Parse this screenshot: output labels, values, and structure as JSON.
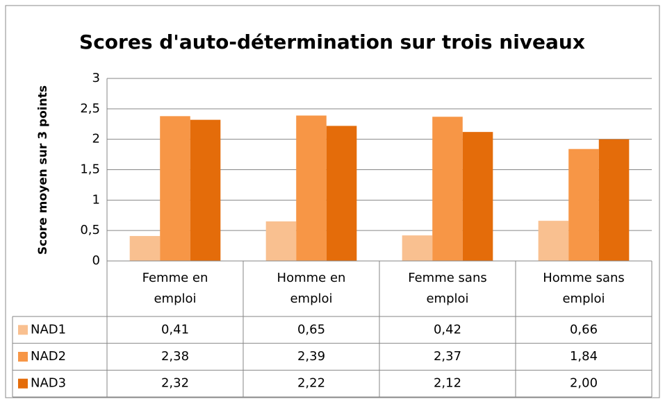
{
  "chart_data": {
    "type": "bar",
    "title": "Scores d'auto-détermination sur trois niveaux",
    "y_label": "Score moyen sur 3 points",
    "categories": [
      "Femme en emploi",
      "Homme en emploi",
      "Femme sans emploi",
      "Homme sans emploi"
    ],
    "series": [
      {
        "name": "NAD1",
        "color": "#f9c090",
        "values": [
          0.41,
          0.65,
          0.42,
          0.66
        ],
        "value_labels": [
          "0,41",
          "0,65",
          "0,42",
          "0,66"
        ]
      },
      {
        "name": "NAD2",
        "color": "#f79646",
        "values": [
          2.38,
          2.39,
          2.37,
          1.84
        ],
        "value_labels": [
          "2,38",
          "2,39",
          "2,37",
          "1,84"
        ]
      },
      {
        "name": "NAD3",
        "color": "#e46c0a",
        "values": [
          2.32,
          2.22,
          2.12,
          2.0
        ],
        "value_labels": [
          "2,32",
          "2,22",
          "2,12",
          "2,00"
        ]
      }
    ],
    "ylim": [
      0,
      3
    ],
    "yticks": [
      0,
      {
        "value": 0.5,
        "label": "0,5"
      },
      1,
      {
        "value": 1.5,
        "label": "1,5"
      },
      2,
      {
        "value": 2.5,
        "label": "2,5"
      },
      3
    ],
    "grid": true
  }
}
